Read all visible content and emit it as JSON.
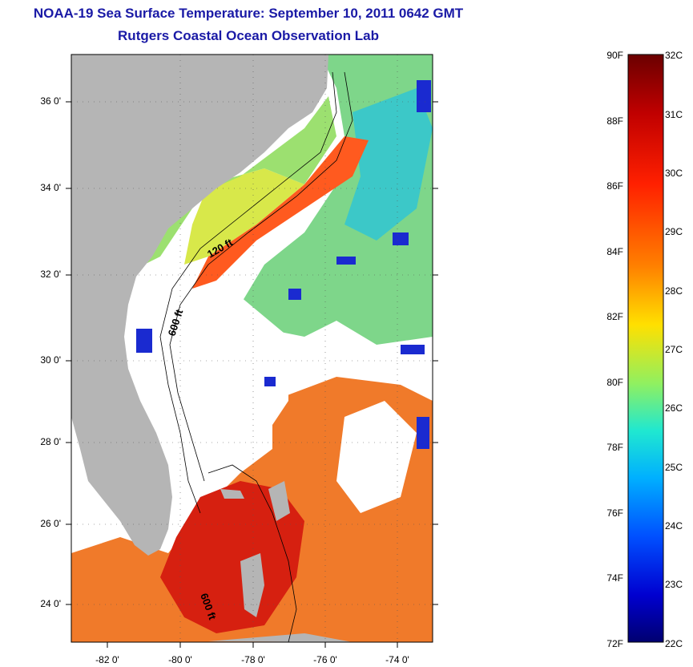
{
  "title": {
    "line1": "NOAA-19 Sea Surface Temperature:  September 10, 2011 0642 GMT",
    "line2": "Rutgers Coastal Ocean Observation Lab"
  },
  "map": {
    "lat_ticks": [
      "36 0'",
      "34 0'",
      "32 0'",
      "30 0'",
      "28 0'",
      "26 0'",
      "24 0'"
    ],
    "lon_ticks": [
      "-82 0'",
      "-80 0'",
      "-78 0'",
      "-76 0'",
      "-74 0'"
    ],
    "contour_labels": [
      "120 ft",
      "600 ft",
      "600 ft"
    ],
    "land_color": "#b5b5b5",
    "cloud_color": "#ffffff"
  },
  "colorbar": {
    "fahrenheit": [
      "90F",
      "88F",
      "86F",
      "84F",
      "82F",
      "80F",
      "78F",
      "76F",
      "74F",
      "72F"
    ],
    "celsius": [
      "32C",
      "31C",
      "30C",
      "29C",
      "28C",
      "27C",
      "26C",
      "25C",
      "24C",
      "23C",
      "22C"
    ],
    "palette": [
      "#800000",
      "#e00000",
      "#ff6000",
      "#ffd000",
      "#a0ff60",
      "#20e0e0",
      "#0080ff",
      "#0000c0",
      "#000080"
    ]
  }
}
